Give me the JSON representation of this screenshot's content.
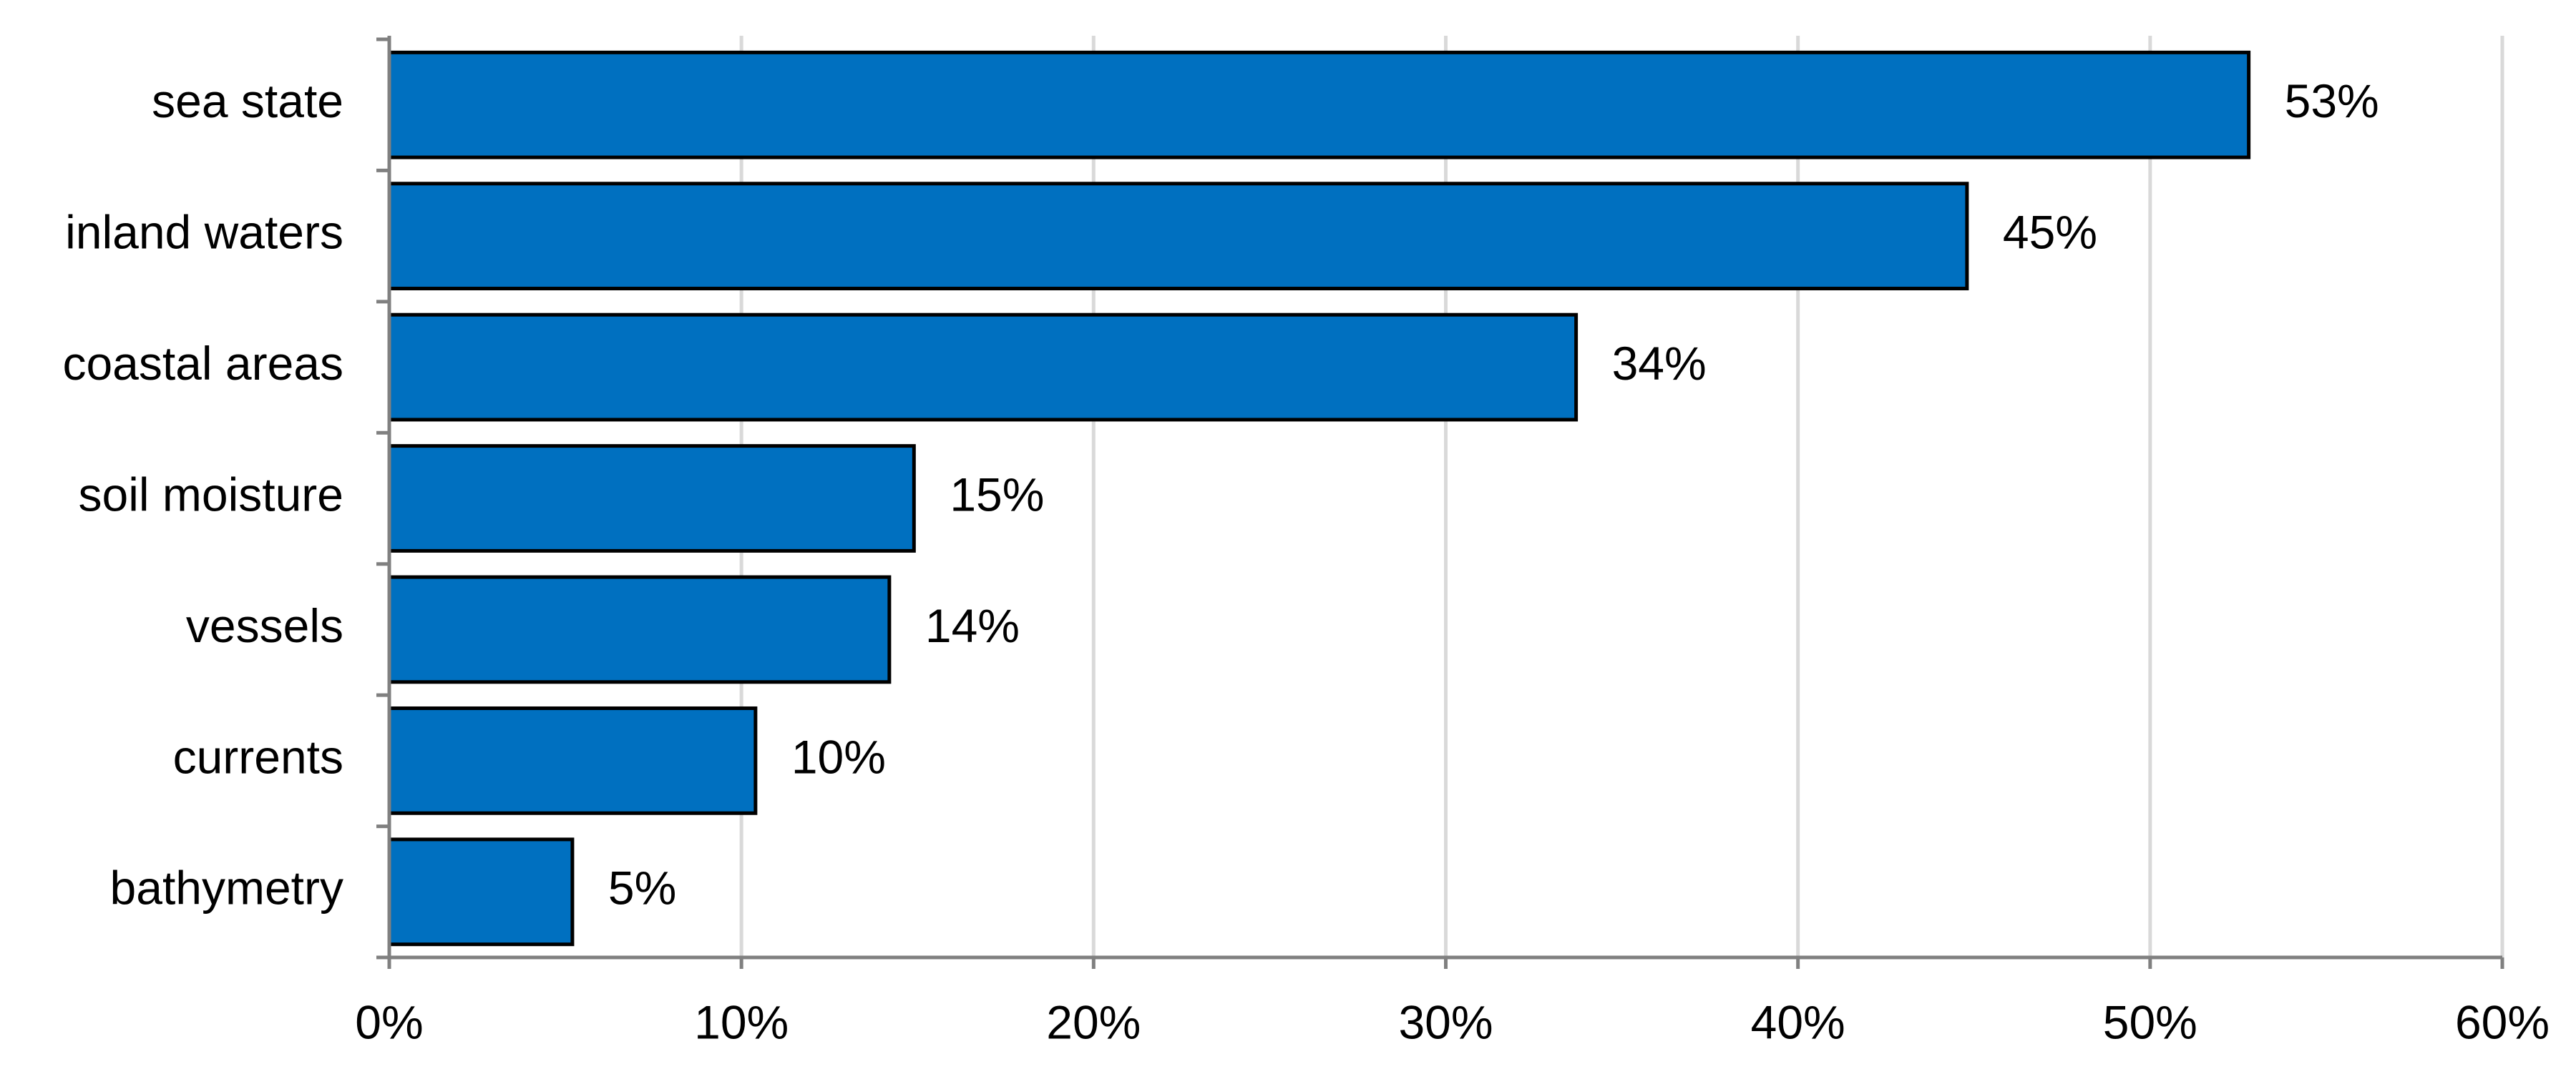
{
  "chart_data": {
    "type": "hbar",
    "categories": [
      "sea state",
      "inland waters",
      "coastal areas",
      "soil moisture",
      "vessels",
      "currents",
      "bathymetry"
    ],
    "values": [
      52.8,
      44.8,
      33.7,
      14.9,
      14.2,
      10.4,
      5.2
    ],
    "value_labels": [
      "53%",
      "45%",
      "34%",
      "15%",
      "14%",
      "10%",
      "5%"
    ],
    "color": "#0070c0",
    "xlim": [
      0,
      60
    ],
    "xticks": [
      {
        "value": 0,
        "label": "0%"
      },
      {
        "value": 10,
        "label": "10%"
      },
      {
        "value": 20,
        "label": "20%"
      },
      {
        "value": 30,
        "label": "30%"
      },
      {
        "value": 40,
        "label": "40%"
      },
      {
        "value": 50,
        "label": "50%"
      },
      {
        "value": 60,
        "label": "60%"
      }
    ],
    "grid": true
  }
}
